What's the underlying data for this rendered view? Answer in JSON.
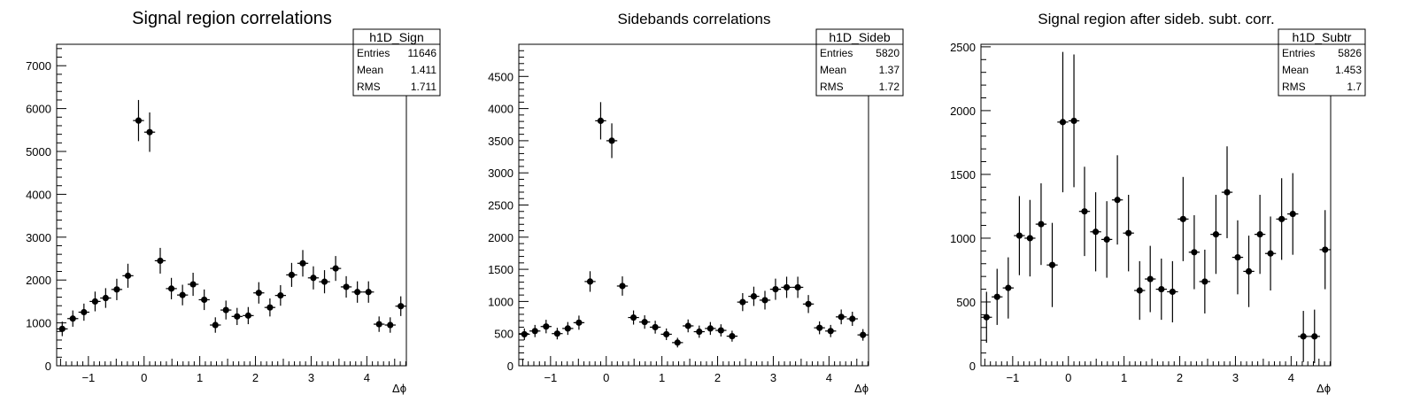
{
  "chart_data": [
    {
      "type": "scatter",
      "title": "Signal region correlations",
      "xlabel": "Δϕ",
      "ylabel": "",
      "xlim": [
        -1.57,
        4.71
      ],
      "ylim": [
        0,
        7500
      ],
      "xticks": [
        -1,
        0,
        1,
        2,
        3,
        4
      ],
      "yticks": [
        0,
        1000,
        2000,
        3000,
        4000,
        5000,
        6000,
        7000
      ],
      "grid": false,
      "stats": {
        "name": "h1D_Sign",
        "rows": [
          [
            "Entries",
            "11646"
          ],
          [
            "Mean",
            "1.411"
          ],
          [
            "RMS",
            "1.711"
          ]
        ]
      },
      "series": [
        {
          "x": [
            -1.47,
            -1.28,
            -1.08,
            -0.88,
            -0.69,
            -0.49,
            -0.29,
            -0.1,
            0.1,
            0.29,
            0.49,
            0.69,
            0.88,
            1.08,
            1.28,
            1.47,
            1.67,
            1.87,
            2.06,
            2.26,
            2.45,
            2.65,
            2.85,
            3.04,
            3.24,
            3.44,
            3.63,
            3.83,
            4.03,
            4.22,
            4.42,
            4.61
          ],
          "y": [
            860,
            1100,
            1250,
            1500,
            1580,
            1780,
            2100,
            5720,
            5450,
            2450,
            1800,
            1650,
            1900,
            1540,
            950,
            1300,
            1150,
            1170,
            1700,
            1360,
            1640,
            2120,
            2390,
            2050,
            1960,
            2270,
            1840,
            1720,
            1720,
            970,
            950,
            1390
          ],
          "err": [
            170,
            190,
            200,
            230,
            230,
            250,
            280,
            480,
            460,
            300,
            250,
            240,
            270,
            240,
            180,
            220,
            200,
            200,
            250,
            210,
            240,
            280,
            310,
            270,
            270,
            290,
            250,
            250,
            250,
            180,
            180,
            230
          ]
        }
      ]
    },
    {
      "type": "scatter",
      "title": "Sidebands correlations",
      "xlabel": "Δϕ",
      "ylabel": "",
      "xlim": [
        -1.57,
        4.71
      ],
      "ylim": [
        0,
        5000
      ],
      "xticks": [
        -1,
        0,
        1,
        2,
        3,
        4
      ],
      "yticks": [
        0,
        500,
        1000,
        1500,
        2000,
        2500,
        3000,
        3500,
        4000,
        4500
      ],
      "grid": false,
      "stats": {
        "name": "h1D_Sideb",
        "rows": [
          [
            "Entries",
            "5820"
          ],
          [
            "Mean",
            "1.37"
          ],
          [
            "RMS",
            "1.72"
          ]
        ]
      },
      "series": [
        {
          "x": [
            -1.47,
            -1.28,
            -1.08,
            -0.88,
            -0.69,
            -0.49,
            -0.29,
            -0.1,
            0.1,
            0.29,
            0.49,
            0.69,
            0.88,
            1.08,
            1.28,
            1.47,
            1.67,
            1.87,
            2.06,
            2.26,
            2.45,
            2.65,
            2.85,
            3.04,
            3.24,
            3.44,
            3.63,
            3.83,
            4.03,
            4.22,
            4.42,
            4.61
          ],
          "y": [
            490,
            540,
            610,
            500,
            580,
            670,
            1310,
            3810,
            3500,
            1240,
            750,
            680,
            600,
            490,
            360,
            620,
            530,
            580,
            550,
            460,
            990,
            1080,
            1020,
            1190,
            1220,
            1220,
            960,
            590,
            540,
            760,
            730,
            480
          ],
          "err": [
            90,
            95,
            105,
            90,
            100,
            110,
            160,
            290,
            270,
            150,
            110,
            105,
            100,
            90,
            75,
            100,
            95,
            100,
            95,
            85,
            140,
            150,
            145,
            165,
            165,
            165,
            140,
            100,
            95,
            115,
            110,
            90
          ]
        }
      ]
    },
    {
      "type": "scatter",
      "title": "Signal region after sideb. subt. corr.",
      "xlabel": "Δϕ",
      "ylabel": "",
      "xlim": [
        -1.57,
        4.71
      ],
      "ylim": [
        0,
        2520
      ],
      "xticks": [
        -1,
        0,
        1,
        2,
        3,
        4
      ],
      "yticks": [
        0,
        500,
        1000,
        1500,
        2000,
        2500
      ],
      "grid": false,
      "stats": {
        "name": "h1D_Subtr",
        "rows": [
          [
            "Entries",
            "5826"
          ],
          [
            "Mean",
            "1.453"
          ],
          [
            "RMS",
            "1.7"
          ]
        ]
      },
      "series": [
        {
          "x": [
            -1.47,
            -1.28,
            -1.08,
            -0.88,
            -0.69,
            -0.49,
            -0.29,
            -0.1,
            0.1,
            0.29,
            0.49,
            0.69,
            0.88,
            1.08,
            1.28,
            1.47,
            1.67,
            1.87,
            2.06,
            2.26,
            2.45,
            2.65,
            2.85,
            3.04,
            3.24,
            3.44,
            3.63,
            3.83,
            4.03,
            4.22,
            4.42,
            4.61
          ],
          "y": [
            380,
            540,
            610,
            1020,
            1000,
            1110,
            790,
            1910,
            1920,
            1210,
            1050,
            990,
            1300,
            1040,
            590,
            680,
            600,
            580,
            1150,
            890,
            660,
            1030,
            1360,
            850,
            740,
            1030,
            880,
            1150,
            1190,
            230,
            230,
            910
          ],
          "err": [
            200,
            220,
            240,
            310,
            300,
            320,
            330,
            550,
            520,
            350,
            310,
            300,
            350,
            300,
            230,
            260,
            240,
            240,
            330,
            290,
            250,
            310,
            360,
            290,
            280,
            310,
            290,
            320,
            320,
            200,
            210,
            310
          ]
        }
      ]
    }
  ]
}
